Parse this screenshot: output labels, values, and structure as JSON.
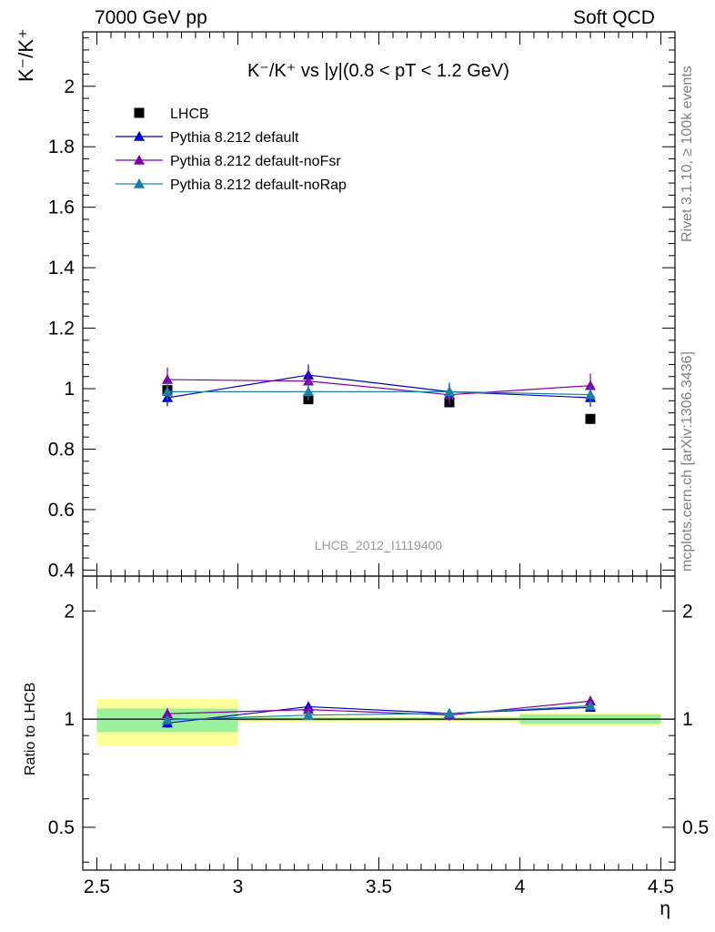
{
  "header": {
    "left": "7000 GeV pp",
    "right": "Soft QCD"
  },
  "side": {
    "rivet": "Rivet 3.1.10, ≥ 100k events",
    "mcplots": "mcplots.cern.ch [arXiv:1306.3436]"
  },
  "watermark": "LHCB_2012_I1119400",
  "colors": {
    "lhcb": "#000000",
    "default": "#0000cc",
    "noFsr": "#7f00aa",
    "noRap": "#1a80a6",
    "band_inner": "#99f299",
    "band_outer": "#ffff99"
  },
  "chart_data": [
    {
      "type": "scatter",
      "title": "K⁻/K⁺ vs |y|(0.8 < pT < 1.2 GeV)",
      "ylabel": "K⁻/K⁺",
      "xlabel": "",
      "xlim": [
        2.45,
        4.55
      ],
      "ylim": [
        0.38,
        2.18
      ],
      "yticks": [
        "0.4",
        "0.6",
        "0.8",
        "1",
        "1.2",
        "1.4",
        "1.6",
        "1.8",
        "2"
      ],
      "legend_position": "top-left",
      "series": [
        {
          "name": "LHCB",
          "marker": "square",
          "x": [
            2.75,
            3.25,
            3.75,
            4.25
          ],
          "y": [
            0.995,
            0.965,
            0.955,
            0.9
          ],
          "err": [
            0.01,
            0.01,
            0.01,
            0.01
          ]
        },
        {
          "name": "Pythia 8.212 default",
          "marker": "triangle",
          "x": [
            2.75,
            3.25,
            3.75,
            4.25
          ],
          "y": [
            0.97,
            1.045,
            0.99,
            0.97
          ],
          "err": [
            0.028,
            0.035,
            0.03,
            0.03
          ]
        },
        {
          "name": "Pythia 8.212 default-noFsr",
          "marker": "triangle",
          "x": [
            2.75,
            3.25,
            3.75,
            4.25
          ],
          "y": [
            1.03,
            1.025,
            0.98,
            1.01
          ],
          "err": [
            0.04,
            0.035,
            0.035,
            0.04
          ]
        },
        {
          "name": "Pythia 8.212 default-noRap",
          "marker": "triangle",
          "x": [
            2.75,
            3.25,
            3.75,
            4.25
          ],
          "y": [
            0.99,
            0.99,
            0.99,
            0.98
          ],
          "err": [
            0.03,
            0.03,
            0.03,
            0.03
          ]
        }
      ]
    },
    {
      "type": "scatter",
      "ylabel": "Ratio to LHCB",
      "xlabel": "η",
      "xlim": [
        2.45,
        4.55
      ],
      "ylim": [
        0.38,
        2.5
      ],
      "log_y": true,
      "xticks": [
        "2.5",
        "3",
        "3.5",
        "4",
        "4.5"
      ],
      "yticks": [
        "0.5",
        "1",
        "2"
      ],
      "bands": [
        {
          "x": [
            2.5,
            3.0
          ],
          "inner": [
            0.92,
            1.07
          ],
          "outer": [
            0.84,
            1.14
          ]
        },
        {
          "x": [
            3.0,
            3.5
          ],
          "inner": [
            0.99,
            1.01
          ],
          "outer": [
            0.98,
            1.02
          ]
        },
        {
          "x": [
            3.5,
            4.0
          ],
          "inner": [
            0.99,
            1.01
          ],
          "outer": [
            0.98,
            1.02
          ]
        },
        {
          "x": [
            4.0,
            4.5
          ],
          "inner": [
            0.97,
            1.03
          ],
          "outer": [
            0.96,
            1.04
          ]
        }
      ],
      "series": [
        {
          "name": "Pythia 8.212 default",
          "x": [
            2.75,
            3.25,
            3.75,
            4.25
          ],
          "y": [
            0.975,
            1.083,
            1.037,
            1.078
          ],
          "err": [
            0.03,
            0.035,
            0.03,
            0.03
          ]
        },
        {
          "name": "Pythia 8.212 default-noFsr",
          "x": [
            2.75,
            3.25,
            3.75,
            4.25
          ],
          "y": [
            1.035,
            1.063,
            1.026,
            1.122
          ],
          "err": [
            0.04,
            0.035,
            0.035,
            0.04
          ]
        },
        {
          "name": "Pythia 8.212 default-noRap",
          "x": [
            2.75,
            3.25,
            3.75,
            4.25
          ],
          "y": [
            0.995,
            1.026,
            1.037,
            1.089
          ],
          "err": [
            0.03,
            0.03,
            0.03,
            0.03
          ]
        }
      ]
    }
  ]
}
